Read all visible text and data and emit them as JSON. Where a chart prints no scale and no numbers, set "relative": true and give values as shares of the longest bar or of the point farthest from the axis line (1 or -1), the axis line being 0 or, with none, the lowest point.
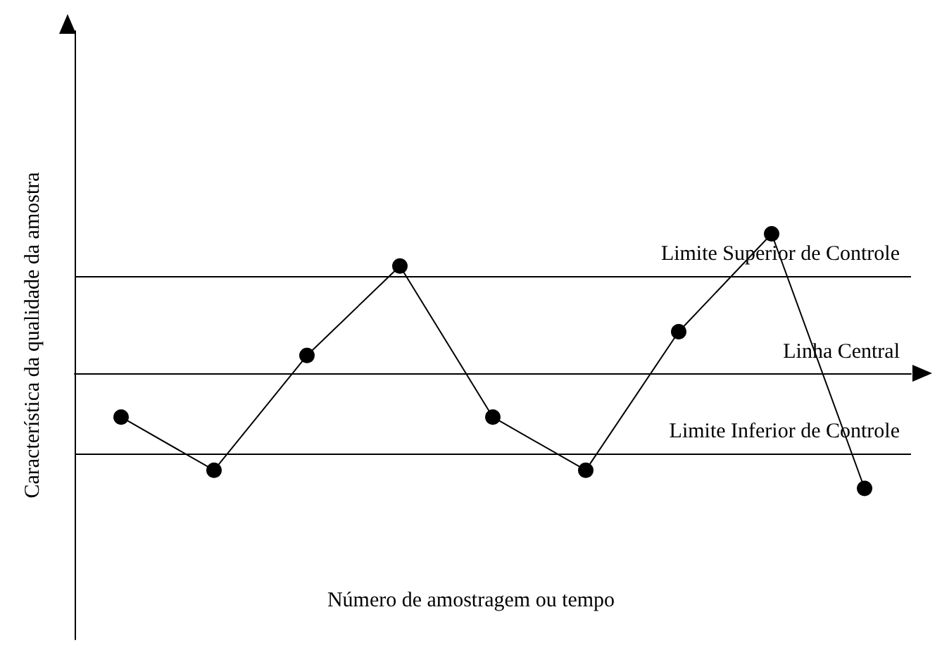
{
  "chart_data": {
    "type": "line",
    "relative": true,
    "xlabel": "Número de amostragem ou tempo",
    "ylabel": "Característica da qualidade da amostra",
    "categories": [
      null,
      null,
      null,
      null,
      null,
      null,
      null,
      null,
      null
    ],
    "series": [
      {
        "color": "#000000",
        "values": [
          -0.31,
          -0.69,
          0.13,
          0.77,
          -0.31,
          -0.69,
          0.3,
          1,
          -0.82
        ]
      }
    ],
    "ref_lines": [
      {
        "axis": "y",
        "value": 0.7,
        "label": "Limite Superior de Controle",
        "color": "#000000"
      },
      {
        "axis": "y",
        "value": 0,
        "label": "Linha Central",
        "color": "#000000"
      },
      {
        "axis": "y",
        "value": -0.57,
        "label": "Limite Inferior de Controle",
        "color": "#000000"
      }
    ],
    "marker": "circle",
    "line_style": "solid"
  }
}
